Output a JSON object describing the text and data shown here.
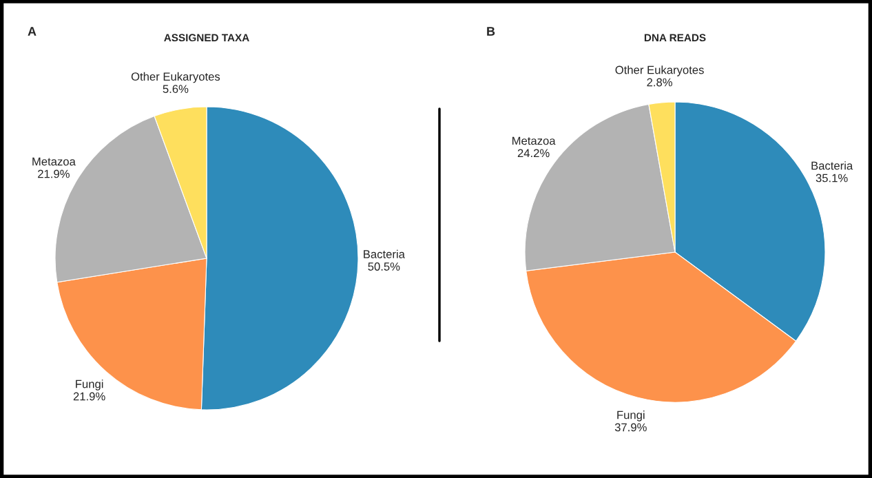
{
  "chart_data": [
    {
      "type": "pie",
      "title": "ASSIGNED TAXA",
      "annotations": [
        "A"
      ],
      "categories": [
        "Bacteria",
        "Fungi",
        "Metazoa",
        "Other Eukaryotes"
      ],
      "values": [
        50.5,
        21.9,
        21.9,
        5.6
      ],
      "value_labels": [
        "50.5%",
        "21.9%",
        "21.9%",
        "5.6%"
      ],
      "colors": [
        "#2e8bba",
        "#fd924b",
        "#b3b3b3",
        "#fedf5d"
      ]
    },
    {
      "type": "pie",
      "title": "DNA READS",
      "annotations": [
        "B"
      ],
      "categories": [
        "Bacteria",
        "Fungi",
        "Metazoa",
        "Other Eukaryotes"
      ],
      "values": [
        35.1,
        37.9,
        24.2,
        2.8
      ],
      "value_labels": [
        "35.1%",
        "37.9%",
        "24.2%",
        "2.8%"
      ],
      "colors": [
        "#2e8bba",
        "#fd924b",
        "#b3b3b3",
        "#fedf5d"
      ]
    }
  ]
}
